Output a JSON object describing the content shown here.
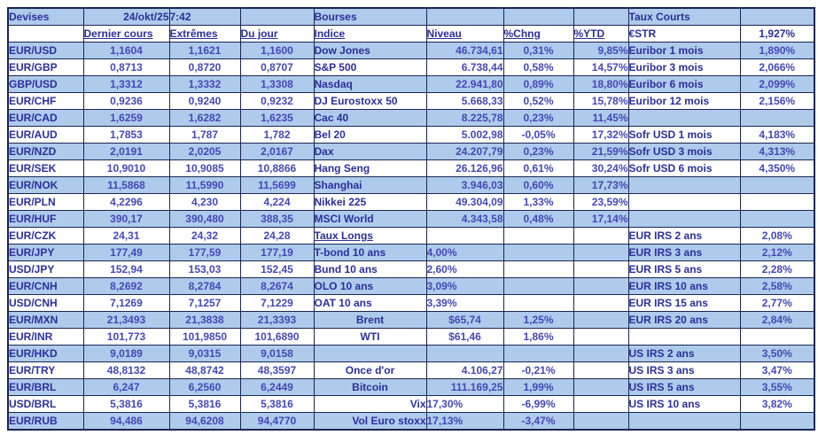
{
  "colors": {
    "row_blue": "#aecbec",
    "row_white": "#ffffff",
    "label_text": "#2b2f9c",
    "value_text": "#4448b6",
    "grid_border": "#1a2550"
  },
  "table": {
    "rows": [
      [
        {
          "t": "Devises"
        },
        {
          "t": "24/okt/25",
          "a": "r"
        },
        {
          "t": "7:42",
          "a": "l"
        },
        "",
        {
          "t": "Bourses"
        },
        "",
        "",
        "",
        {
          "t": "Taux Courts"
        },
        ""
      ],
      [
        "",
        {
          "t": "Dernier cours",
          "u": 1,
          "a": "l"
        },
        {
          "t": "Extrêmes",
          "u": 1,
          "a": "l"
        },
        {
          "t": "Du jour",
          "u": 1,
          "a": "l"
        },
        {
          "t": "Indice",
          "u": 1
        },
        {
          "t": "Niveau",
          "u": 1,
          "a": "l"
        },
        {
          "t": "%Chng",
          "u": 1,
          "a": "l"
        },
        {
          "t": "%YTD",
          "u": 1,
          "a": "l"
        },
        "€STR",
        "1,927%"
      ],
      [
        "EUR/USD",
        "1,1604",
        "1,1621",
        "1,1600",
        "Dow Jones",
        "46.734,61",
        "0,31%",
        "9,85%",
        "Euribor 1 mois",
        "1,890%"
      ],
      [
        "EUR/GBP",
        "0,8713",
        "0,8720",
        "0,8707",
        "S&P 500",
        "6.738,44",
        "0,58%",
        "14,57%",
        "Euribor 3 mois",
        "2,066%"
      ],
      [
        "GBP/USD",
        "1,3312",
        "1,3332",
        "1,3308",
        "Nasdaq",
        "22.941,80",
        "0,89%",
        "18,80%",
        "Euribor 6 mois",
        "2,099%"
      ],
      [
        "EUR/CHF",
        "0,9236",
        "0,9240",
        "0,9232",
        "DJ Eurostoxx 50",
        "5.668,33",
        "0,52%",
        "15,78%",
        "Euribor 12 mois",
        "2,156%"
      ],
      [
        "EUR/CAD",
        "1,6259",
        "1,6282",
        "1,6235",
        "Cac 40",
        "8.225,78",
        "0,23%",
        "11,45%",
        "",
        ""
      ],
      [
        "EUR/AUD",
        "1,7853",
        "1,787",
        "1,782",
        "Bel 20",
        "5.002,98",
        "-0,05%",
        "17,32%",
        "Sofr USD 1 mois",
        "4,183%"
      ],
      [
        "EUR/NZD",
        "2,0191",
        "2,0205",
        "2,0167",
        "Dax",
        "24.207,79",
        "0,23%",
        "21,59%",
        "Sofr USD 3 mois",
        "4,313%"
      ],
      [
        "EUR/SEK",
        "10,9010",
        "10,9085",
        "10,8866",
        "Hang Seng",
        "26.126,96",
        "0,61%",
        "30,24%",
        "Sofr USD 6 mois",
        "4,350%"
      ],
      [
        "EUR/NOK",
        "11,5868",
        "11,5990",
        "11,5699",
        "Shanghai",
        "3.946,03",
        "0,60%",
        "17,73%",
        "",
        ""
      ],
      [
        "EUR/PLN",
        "4,2296",
        "4,230",
        "4,224",
        "Nikkei 225",
        "49.304,09",
        "1,33%",
        "23,59%",
        "",
        ""
      ],
      [
        "EUR/HUF",
        "390,17",
        "390,480",
        "388,35",
        "MSCI World",
        "4.343,58",
        "0,48%",
        "17,14%",
        "",
        ""
      ],
      [
        "EUR/CZK",
        "24,31",
        "24,32",
        "24,28",
        {
          "t": "Taux Longs",
          "u": 1
        },
        "",
        "",
        "",
        "EUR IRS 2 ans",
        "2,08%"
      ],
      [
        "EUR/JPY",
        "177,49",
        "177,59",
        "177,19",
        "T-bond 10 ans",
        {
          "t": "4,00%",
          "a": "l"
        },
        "",
        "",
        "EUR IRS 3 ans",
        "2,12%"
      ],
      [
        "USD/JPY",
        "152,94",
        "153,03",
        "152,45",
        "Bund 10 ans",
        {
          "t": "2,60%",
          "a": "l"
        },
        "",
        "",
        "EUR IRS 5 ans",
        "2,28%"
      ],
      [
        "EUR/CNH",
        "8,2692",
        "8,2784",
        "8,2674",
        "OLO 10 ans",
        {
          "t": "3,09%",
          "a": "l"
        },
        "",
        "",
        "EUR IRS 10 ans",
        "2,58%"
      ],
      [
        "USD/CNH",
        "7,1269",
        "7,1257",
        "7,1229",
        "OAT 10 ans",
        {
          "t": "3,39%",
          "a": "l"
        },
        "",
        "",
        "EUR IRS 15 ans",
        "2,77%"
      ],
      [
        "EUR/MXN",
        "21,3493",
        "21,3838",
        "21,3393",
        {
          "t": "Brent",
          "a": "c"
        },
        {
          "t": "$65,74",
          "a": "c"
        },
        "1,25%",
        "",
        "EUR IRS 20 ans",
        "2,84%"
      ],
      [
        "EUR/INR",
        "101,773",
        "101,9850",
        "101,6890",
        {
          "t": "WTI",
          "a": "c"
        },
        {
          "t": "$61,46",
          "a": "c"
        },
        "1,86%",
        "",
        "",
        ""
      ],
      [
        "EUR/HKD",
        "9,0189",
        "9,0315",
        "9,0158",
        "",
        "",
        "",
        "",
        "US IRS 2 ans",
        "3,50%"
      ],
      [
        "EUR/TRY",
        "48,8132",
        "48,8742",
        "48,3597",
        {
          "t": "Once d'or",
          "a": "c"
        },
        "4.106,27",
        "-0,21%",
        "",
        "US IRS 3 ans",
        "3,47%"
      ],
      [
        "EUR/BRL",
        "6,247",
        "6,2560",
        "6,2449",
        {
          "t": "Bitcoin",
          "a": "c"
        },
        "111.169,25",
        "1,99%",
        "",
        "US IRS 5 ans",
        "3,55%"
      ],
      [
        "USD/BRL",
        "5,3816",
        "5,3816",
        "5,3816",
        {
          "t": "Vix",
          "a": "r"
        },
        {
          "t": "17,30%",
          "a": "l"
        },
        "-6,99%",
        "",
        "US IRS 10 ans",
        "3,82%"
      ],
      [
        "EUR/RUB",
        "94,486",
        "94,6208",
        "94,4770",
        {
          "t": "Vol Euro stoxx",
          "a": "r"
        },
        {
          "t": "17,13%",
          "a": "l"
        },
        "-3,47%",
        "",
        "",
        ""
      ]
    ]
  }
}
